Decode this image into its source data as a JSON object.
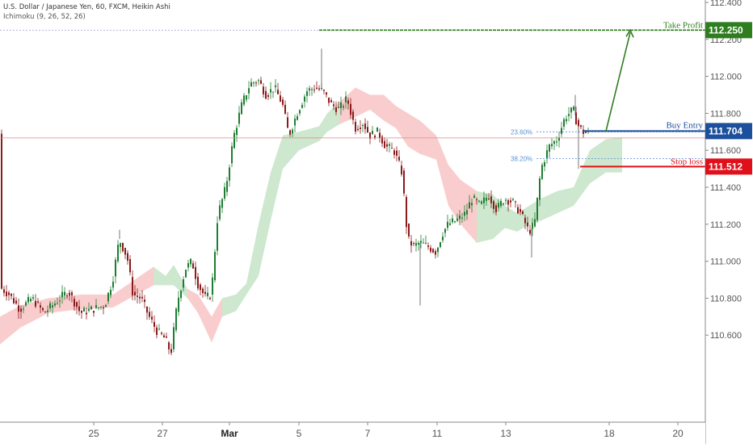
{
  "header": {
    "title": "U.S. Dollar / Japanese Yen, 60, FXCM, Heikin Ashi",
    "indicator": "Ichimoku (9, 26, 52, 26)"
  },
  "colors": {
    "bull": "#1e7d32",
    "bear": "#8b1a1a",
    "cloud_bull": "#c8e6c9",
    "cloud_bear": "#f8c8c8",
    "take_profit": "#2e7d1e",
    "buy_entry": "#1c4f9c",
    "stop_loss": "#e0101a",
    "axis_text": "#555555",
    "fib": "#5b8fd6",
    "current_price_line": "#d98a8a"
  },
  "chart_data": {
    "type": "candlestick",
    "instrument": "U.S. Dollar / Japanese Yen",
    "timeframe": "60",
    "ylim": [
      110.45,
      112.43
    ],
    "y_ticks": [
      112.4,
      112.2,
      112.0,
      111.8,
      111.6,
      111.4,
      111.2,
      111.0,
      110.8,
      110.6
    ],
    "y_tick_labels": [
      "112.400",
      "112.200",
      "112.000",
      "111.800",
      "111.600",
      "111.400",
      "111.200",
      "111.000",
      "110.800",
      "110.600"
    ],
    "x_ticks": [
      "25",
      "27",
      "Mar",
      "5",
      "7",
      "11",
      "13",
      "18",
      "20"
    ],
    "price_path": [
      [
        0,
        110.86
      ],
      [
        12,
        110.82
      ],
      [
        25,
        110.74
      ],
      [
        40,
        110.8
      ],
      [
        55,
        110.72
      ],
      [
        70,
        110.78
      ],
      [
        85,
        110.84
      ],
      [
        100,
        110.72
      ],
      [
        115,
        110.74
      ],
      [
        130,
        110.76
      ],
      [
        140,
        110.9
      ],
      [
        148,
        111.12
      ],
      [
        158,
        111.02
      ],
      [
        165,
        110.82
      ],
      [
        175,
        110.8
      ],
      [
        185,
        110.7
      ],
      [
        195,
        110.62
      ],
      [
        205,
        110.58
      ],
      [
        212,
        110.5
      ],
      [
        220,
        110.78
      ],
      [
        230,
        110.96
      ],
      [
        238,
        111.0
      ],
      [
        245,
        110.88
      ],
      [
        255,
        110.8
      ],
      [
        262,
        110.82
      ],
      [
        270,
        111.25
      ],
      [
        280,
        111.4
      ],
      [
        290,
        111.68
      ],
      [
        300,
        111.85
      ],
      [
        310,
        111.96
      ],
      [
        320,
        111.98
      ],
      [
        330,
        111.9
      ],
      [
        340,
        111.94
      ],
      [
        350,
        111.85
      ],
      [
        358,
        111.68
      ],
      [
        368,
        111.8
      ],
      [
        380,
        111.92
      ],
      [
        390,
        111.94
      ],
      [
        400,
        111.92
      ],
      [
        410,
        111.85
      ],
      [
        420,
        111.82
      ],
      [
        430,
        111.88
      ],
      [
        440,
        111.72
      ],
      [
        450,
        111.75
      ],
      [
        458,
        111.68
      ],
      [
        468,
        111.7
      ],
      [
        478,
        111.62
      ],
      [
        488,
        111.6
      ],
      [
        498,
        111.48
      ],
      [
        505,
        111.12
      ],
      [
        512,
        111.08
      ],
      [
        520,
        111.1
      ],
      [
        530,
        111.08
      ],
      [
        540,
        111.05
      ],
      [
        548,
        111.15
      ],
      [
        555,
        111.2
      ],
      [
        565,
        111.22
      ],
      [
        575,
        111.25
      ],
      [
        585,
        111.34
      ],
      [
        595,
        111.3
      ],
      [
        605,
        111.36
      ],
      [
        615,
        111.28
      ],
      [
        625,
        111.34
      ],
      [
        635,
        111.32
      ],
      [
        645,
        111.26
      ],
      [
        655,
        111.16
      ],
      [
        662,
        111.2
      ],
      [
        670,
        111.5
      ],
      [
        680,
        111.62
      ],
      [
        690,
        111.66
      ],
      [
        700,
        111.78
      ],
      [
        710,
        111.82
      ],
      [
        715,
        111.74
      ],
      [
        722,
        111.7
      ],
      [
        728,
        111.69
      ]
    ],
    "ichimoku_cloud": [
      [
        0,
        110.55,
        110.7
      ],
      [
        25,
        110.64,
        110.76
      ],
      [
        60,
        110.72,
        110.8
      ],
      [
        100,
        110.74,
        110.82
      ],
      [
        140,
        110.75,
        110.82
      ],
      [
        190,
        110.87,
        110.97
      ],
      [
        205,
        110.87,
        110.92
      ],
      [
        215,
        110.87,
        110.98
      ],
      [
        232,
        110.8,
        110.85
      ],
      [
        245,
        110.72,
        110.82
      ],
      [
        262,
        110.56,
        110.7
      ],
      [
        275,
        110.7,
        110.8
      ],
      [
        292,
        110.73,
        110.82
      ],
      [
        305,
        110.82,
        110.88
      ],
      [
        320,
        110.92,
        111.2
      ],
      [
        335,
        111.22,
        111.48
      ],
      [
        350,
        111.5,
        111.68
      ],
      [
        370,
        111.6,
        111.7
      ],
      [
        395,
        111.65,
        111.73
      ],
      [
        405,
        111.7,
        111.8
      ],
      [
        420,
        111.74,
        111.86
      ],
      [
        440,
        111.78,
        111.94
      ],
      [
        458,
        111.82,
        111.9
      ],
      [
        475,
        111.76,
        111.9
      ],
      [
        490,
        111.72,
        111.84
      ],
      [
        505,
        111.62,
        111.8
      ],
      [
        520,
        111.58,
        111.76
      ],
      [
        540,
        111.55,
        111.68
      ],
      [
        555,
        111.3,
        111.52
      ],
      [
        570,
        111.2,
        111.44
      ],
      [
        590,
        111.1,
        111.38
      ],
      [
        610,
        111.12,
        111.36
      ],
      [
        625,
        111.18,
        111.3
      ],
      [
        640,
        111.16,
        111.26
      ],
      [
        655,
        111.2,
        111.3
      ],
      [
        670,
        111.22,
        111.34
      ],
      [
        690,
        111.26,
        111.38
      ],
      [
        710,
        111.3,
        111.4
      ],
      [
        730,
        111.42,
        111.6
      ],
      [
        750,
        111.48,
        111.66
      ],
      [
        770,
        111.48,
        111.67
      ]
    ],
    "levels": {
      "take_profit": {
        "label": "Take Profit",
        "value_label": "112.250",
        "value": 112.25
      },
      "buy_entry": {
        "label": "Buy Entry",
        "value_label": "111.704",
        "value": 111.704
      },
      "stop_loss": {
        "label": "Stop loss",
        "value_label": "111.512",
        "value": 111.512
      }
    },
    "fib_levels": [
      {
        "label": "23.60%",
        "value": 111.7
      },
      {
        "label": "38.20%",
        "value": 111.555
      }
    ],
    "current_price": 111.667,
    "projection_arrow": {
      "from": [
        750,
        111.704
      ],
      "to": [
        780,
        112.25
      ]
    }
  }
}
